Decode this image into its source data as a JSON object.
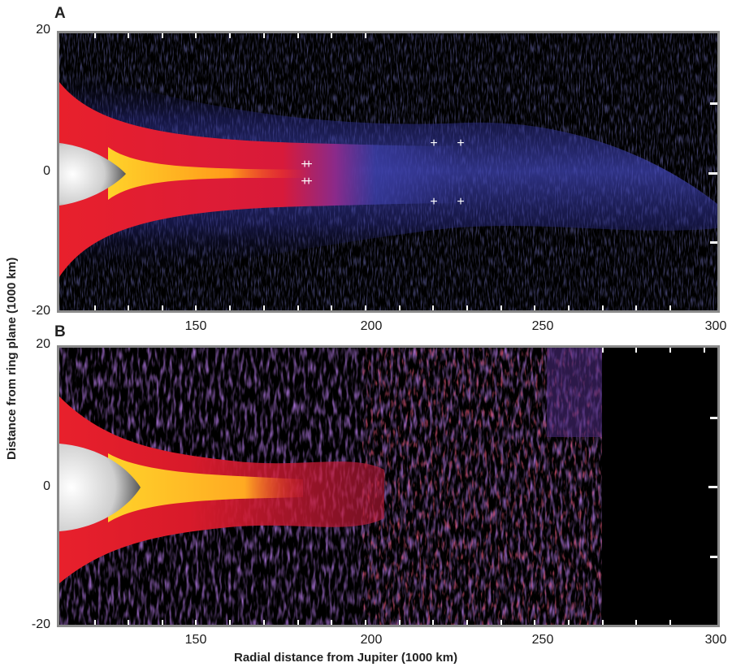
{
  "figure": {
    "panel_a_label": "A",
    "panel_b_label": "B",
    "y_axis_title": "Distance from ring plane (1000 km)",
    "x_axis_title": "Radial distance from Jupiter (1000 km)"
  },
  "axes": {
    "x_ticks": [
      "150",
      "200",
      "250",
      "300"
    ],
    "y_ticks": [
      "20",
      "0",
      "-20"
    ]
  },
  "colors": {
    "panel_border": "#8a8a8a",
    "background": "#000000",
    "blue_halo": "#3b3fa8",
    "red_ring": "#d81a2a",
    "yellow_core": "#ffcc22",
    "jupiter_white": "#f2f2f2"
  },
  "markers": {
    "symbol": "+"
  }
}
